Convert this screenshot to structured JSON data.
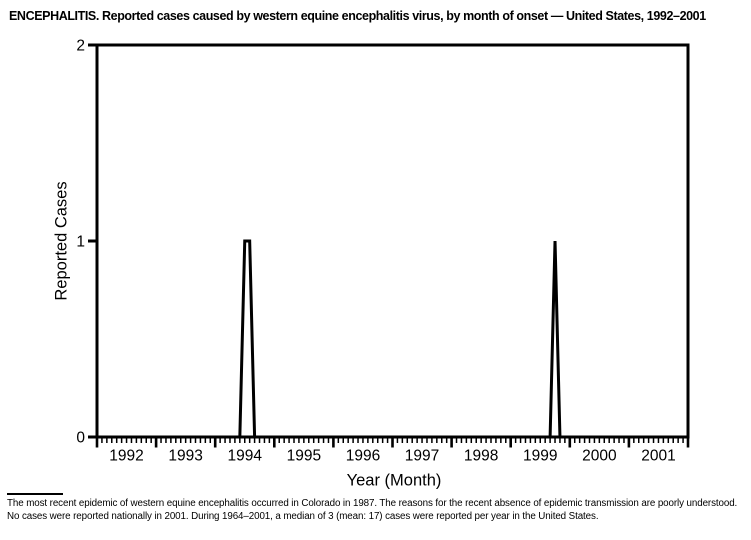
{
  "page": {
    "title": "ENCEPHALITIS. Reported cases caused by western equine encephalitis virus, by month of onset — United States, 1992–2001",
    "footnote": "The most recent epidemic of western equine encephalitis occurred in Colorado in 1987. The reasons for the recent absence of epidemic transmission are poorly understood. No cases were reported nationally in 2001. During 1964–2001, a median of 3 (mean: 17) cases were reported per year in the United States.",
    "background_color": "#ffffff",
    "ink_color": "#000000"
  },
  "chart_data": {
    "type": "line",
    "title": "ENCEPHALITIS. Reported cases caused by western equine encephalitis virus, by month of onset — United States, 1992–2001",
    "xlabel": "Year (Month)",
    "ylabel": "Reported Cases",
    "x_unit": "month",
    "x_start": "1992-01",
    "x_end": "2001-12",
    "year_labels": [
      "1992",
      "1993",
      "1994",
      "1995",
      "1996",
      "1997",
      "1998",
      "1999",
      "2000",
      "2001"
    ],
    "yticks": [
      "0",
      "1",
      "2"
    ],
    "ylim": [
      0,
      2
    ],
    "grid": false,
    "legend": null,
    "line_color": "#000000",
    "nonzero_points": [
      {
        "month": "1994-07",
        "value": 1
      },
      {
        "month": "1994-08",
        "value": 1
      },
      {
        "month": "1999-10",
        "value": 1
      }
    ],
    "monthly_values": [
      0,
      0,
      0,
      0,
      0,
      0,
      0,
      0,
      0,
      0,
      0,
      0,
      0,
      0,
      0,
      0,
      0,
      0,
      0,
      0,
      0,
      0,
      0,
      0,
      0,
      0,
      0,
      0,
      0,
      0,
      1,
      1,
      0,
      0,
      0,
      0,
      0,
      0,
      0,
      0,
      0,
      0,
      0,
      0,
      0,
      0,
      0,
      0,
      0,
      0,
      0,
      0,
      0,
      0,
      0,
      0,
      0,
      0,
      0,
      0,
      0,
      0,
      0,
      0,
      0,
      0,
      0,
      0,
      0,
      0,
      0,
      0,
      0,
      0,
      0,
      0,
      0,
      0,
      0,
      0,
      0,
      0,
      0,
      0,
      0,
      0,
      0,
      0,
      0,
      0,
      0,
      0,
      0,
      1,
      0,
      0,
      0,
      0,
      0,
      0,
      0,
      0,
      0,
      0,
      0,
      0,
      0,
      0,
      0,
      0,
      0,
      0,
      0,
      0,
      0,
      0,
      0,
      0,
      0,
      0
    ]
  }
}
